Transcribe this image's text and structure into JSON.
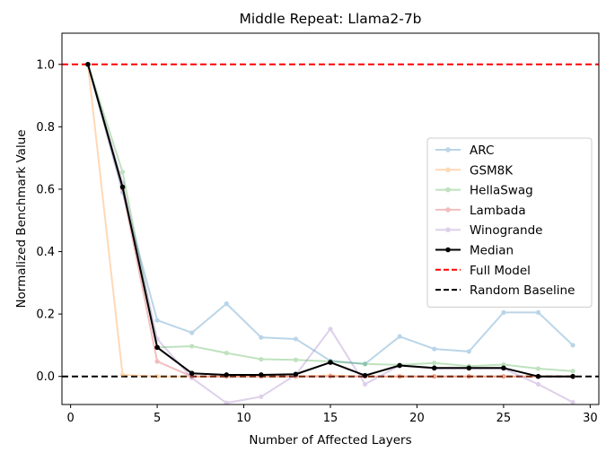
{
  "chart_data": {
    "type": "line",
    "title": "Middle Repeat: Llama2-7b",
    "xlabel": "Number of Affected Layers",
    "ylabel": "Normalized Benchmark Value",
    "xlim": [
      -0.5,
      30.5
    ],
    "ylim": [
      -0.09,
      1.1
    ],
    "xticks": [
      0,
      5,
      10,
      15,
      20,
      25,
      30
    ],
    "xtick_labels": [
      "0",
      "5",
      "10",
      "15",
      "20",
      "25",
      "30"
    ],
    "yticks": [
      0.0,
      0.2,
      0.4,
      0.6,
      0.8,
      1.0
    ],
    "ytick_labels": [
      "0.0",
      "0.2",
      "0.4",
      "0.6",
      "0.8",
      "1.0"
    ],
    "grid": false,
    "legend_position": "center-right",
    "series": [
      {
        "name": "ARC",
        "color": "#1f77b4",
        "alpha": 0.3,
        "marker": "dot",
        "x": [
          1,
          3,
          5,
          7,
          9,
          11,
          13,
          15,
          17,
          19,
          21,
          23,
          25,
          27,
          29
        ],
        "y": [
          1.0,
          0.59,
          0.18,
          0.14,
          0.233,
          0.125,
          0.12,
          0.05,
          0.04,
          0.128,
          0.088,
          0.08,
          0.205,
          0.205,
          0.1
        ]
      },
      {
        "name": "GSM8K",
        "color": "#ff7f0e",
        "alpha": 0.3,
        "marker": "dot",
        "x": [
          1,
          3,
          5,
          7,
          9,
          11,
          13,
          15,
          17,
          19,
          21,
          23,
          25,
          27,
          29
        ],
        "y": [
          1.0,
          0.005,
          0.0,
          0.0,
          0.0,
          0.0,
          0.0,
          0.003,
          0.0,
          0.0,
          0.0,
          0.0,
          0.0,
          0.0,
          0.0
        ]
      },
      {
        "name": "HellaSwag",
        "color": "#2ca02c",
        "alpha": 0.3,
        "marker": "dot",
        "x": [
          1,
          3,
          5,
          7,
          9,
          11,
          13,
          15,
          17,
          19,
          21,
          23,
          25,
          27,
          29
        ],
        "y": [
          1.0,
          0.655,
          0.093,
          0.097,
          0.075,
          0.055,
          0.053,
          0.048,
          0.04,
          0.037,
          0.043,
          0.033,
          0.038,
          0.025,
          0.017
        ]
      },
      {
        "name": "Lambada",
        "color": "#d62728",
        "alpha": 0.3,
        "marker": "dot",
        "x": [
          1,
          3,
          5,
          7,
          9,
          11,
          13,
          15,
          17,
          19,
          21,
          23,
          25,
          27,
          29
        ],
        "y": [
          1.0,
          0.6,
          0.048,
          0.0,
          0.0,
          0.0,
          0.0,
          0.0,
          0.0,
          0.0,
          0.0,
          0.0,
          0.0,
          0.0,
          0.0
        ]
      },
      {
        "name": "Winogrande",
        "color": "#9467bd",
        "alpha": 0.3,
        "marker": "dot",
        "x": [
          1,
          3,
          5,
          7,
          9,
          11,
          13,
          15,
          17,
          19,
          21,
          23,
          25,
          27,
          29
        ],
        "y": [
          1.0,
          0.62,
          0.12,
          -0.005,
          -0.085,
          -0.065,
          0.005,
          0.152,
          -0.025,
          0.035,
          0.025,
          0.025,
          0.025,
          -0.025,
          -0.083
        ]
      },
      {
        "name": "Median",
        "color": "#000000",
        "alpha": 1.0,
        "marker": "dot",
        "bold": true,
        "x": [
          1,
          3,
          5,
          7,
          9,
          11,
          13,
          15,
          17,
          19,
          21,
          23,
          25,
          27,
          29
        ],
        "y": [
          1.0,
          0.607,
          0.093,
          0.01,
          0.005,
          0.005,
          0.007,
          0.045,
          0.003,
          0.035,
          0.027,
          0.027,
          0.027,
          0.0,
          0.0
        ]
      }
    ],
    "reference_lines": [
      {
        "name": "Full Model",
        "y": 1.0,
        "color": "#ff0000",
        "style": "dashed"
      },
      {
        "name": "Random Baseline",
        "y": 0.0,
        "color": "#000000",
        "style": "dashed"
      }
    ]
  }
}
